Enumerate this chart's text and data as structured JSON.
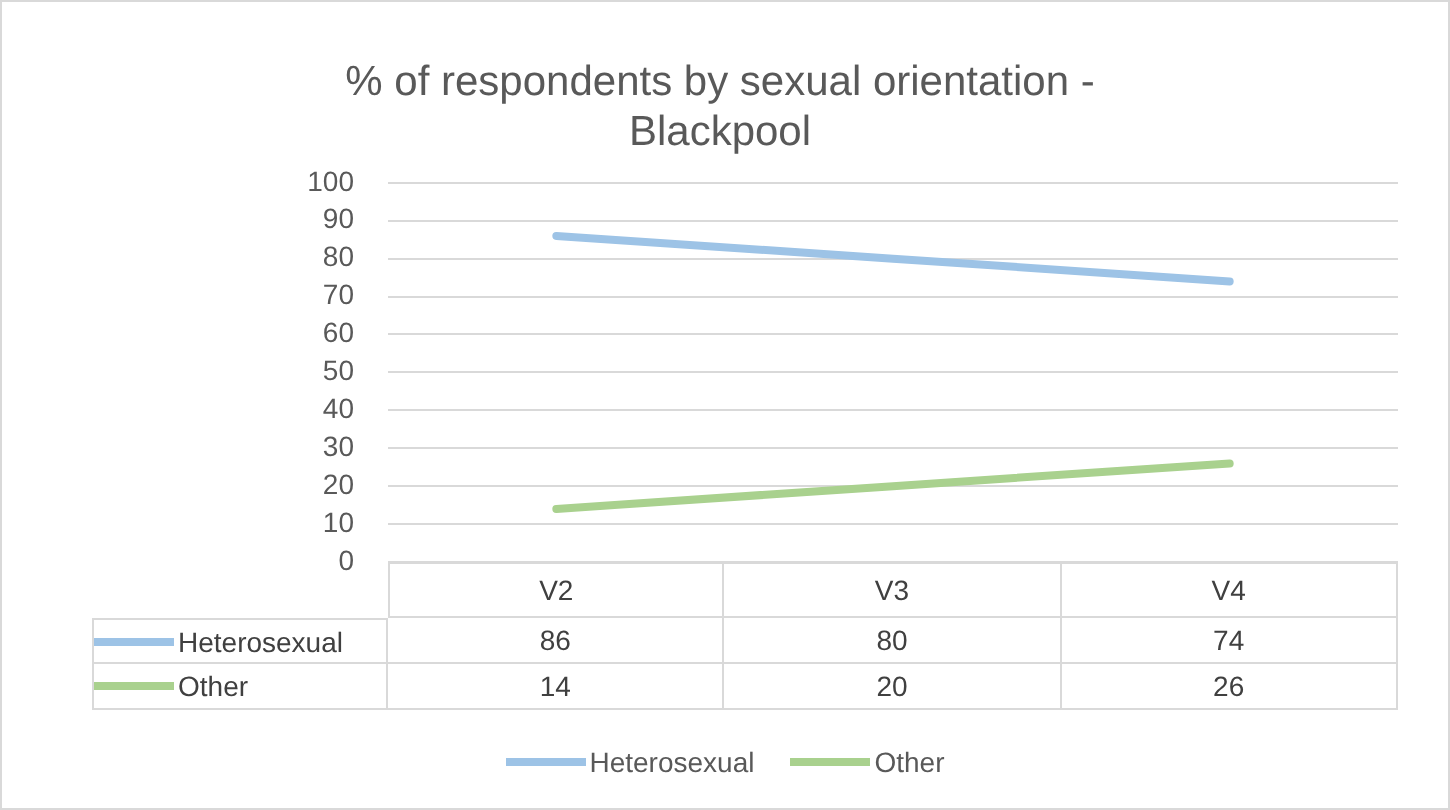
{
  "chart_data": {
    "type": "line",
    "title": "% of respondents by sexual orientation - Blackpool",
    "categories": [
      "V2",
      "V3",
      "V4"
    ],
    "series": [
      {
        "name": "Heterosexual",
        "color": "#9dc3e6",
        "values": [
          86,
          80,
          74
        ]
      },
      {
        "name": "Other",
        "color": "#a9d18e",
        "values": [
          14,
          20,
          26
        ]
      }
    ],
    "ylim": [
      0,
      100
    ],
    "yticks": [
      0,
      10,
      20,
      30,
      40,
      50,
      60,
      70,
      80,
      90,
      100
    ],
    "grid": "y",
    "legend": "bottom",
    "marker": "none",
    "line_style": "solid",
    "data_labels": true
  }
}
